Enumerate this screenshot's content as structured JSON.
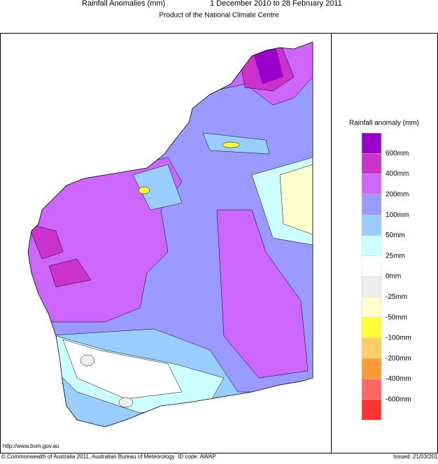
{
  "header": {
    "title": "Rainfall Anomalies (mm)",
    "period": "1 December 2010 to 28 February 2011",
    "subtitle": "Product of the National Climate Centre"
  },
  "legend": {
    "title": "Rainfall anomaly (mm)",
    "colors": [
      "#9900cc",
      "#cc33cc",
      "#cc66ff",
      "#9999ff",
      "#99ccff",
      "#ccffff",
      "#ffffff",
      "#eeeeee",
      "#ffffcc",
      "#ffff33",
      "#ffcc66",
      "#ff9933",
      "#ff6666",
      "#ff3333"
    ],
    "labels": [
      "600mm",
      "400mm",
      "200mm",
      "100mm",
      "50mm",
      "25mm",
      "0mm",
      "-25mm",
      "-50mm",
      "-100mm",
      "-200mm",
      "-400mm",
      "-600mm"
    ]
  },
  "footer": {
    "url": "http://www.bom.gov.au",
    "copyright": "© Commonwealth of Australia 2011, Australian Bureau of Meteorology",
    "id_code": "ID code: AWAP",
    "issued": "Issued: 21/03/2011"
  }
}
